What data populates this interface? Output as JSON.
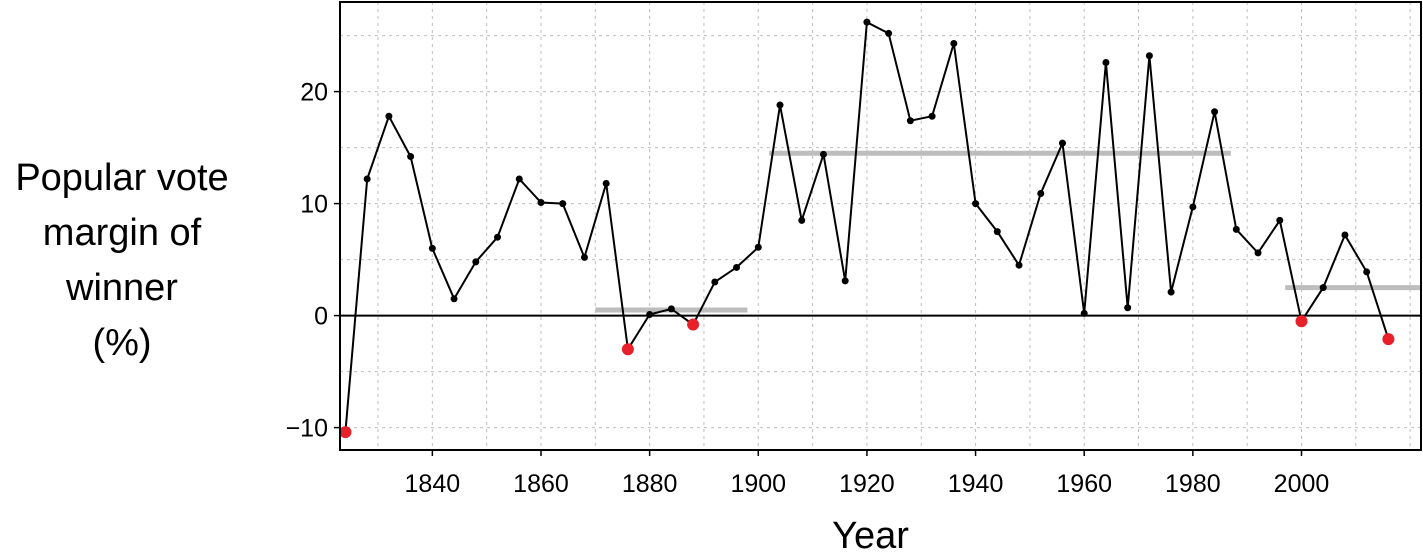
{
  "chart_data": {
    "type": "line",
    "title": "",
    "xlabel": "Year",
    "ylabel_lines": [
      "Popular vote",
      "margin of",
      "winner",
      "(%)"
    ],
    "xlim": [
      1823,
      2022
    ],
    "ylim": [
      -12,
      28
    ],
    "x_ticks": [
      1840,
      1860,
      1880,
      1900,
      1920,
      1940,
      1960,
      1980,
      2000
    ],
    "y_ticks": [
      -10,
      0,
      10,
      20
    ],
    "x_tick_labels": [
      "1840",
      "1860",
      "1880",
      "1900",
      "1920",
      "1940",
      "1960",
      "1980",
      "2000"
    ],
    "y_tick_labels": [
      "−10",
      "0",
      "10",
      "20"
    ],
    "grid": true,
    "reference_line_y": 0,
    "colors": {
      "line": "#000000",
      "point": "#000000",
      "highlight_point": "#e8202a",
      "average_bar": "#bdbdbd",
      "grid": "#bfbfbf"
    },
    "series": [
      {
        "x": [
          1824,
          1828,
          1832,
          1836,
          1840,
          1844,
          1848,
          1852,
          1856,
          1860,
          1864,
          1868,
          1872,
          1876,
          1880,
          1884,
          1888,
          1892,
          1896,
          1900,
          1904,
          1908,
          1912,
          1916,
          1920,
          1924,
          1928,
          1932,
          1936,
          1940,
          1944,
          1948,
          1952,
          1956,
          1960,
          1964,
          1968,
          1972,
          1976,
          1980,
          1984,
          1988,
          1992,
          1996,
          2000,
          2004,
          2008,
          2012,
          2016
        ],
        "y": [
          -10.4,
          12.2,
          17.8,
          14.2,
          6.0,
          1.5,
          4.8,
          7.0,
          12.2,
          10.1,
          10.0,
          5.2,
          11.8,
          -3.0,
          0.1,
          0.6,
          -0.8,
          3.0,
          4.3,
          6.1,
          18.8,
          8.5,
          14.4,
          3.1,
          26.2,
          25.2,
          17.4,
          17.8,
          24.3,
          10.0,
          7.5,
          4.5,
          10.9,
          15.4,
          0.2,
          22.6,
          0.7,
          23.2,
          2.1,
          9.7,
          18.2,
          7.7,
          5.6,
          8.5,
          -0.5,
          2.5,
          7.2,
          3.9,
          -2.1
        ],
        "highlighted_x": [
          1824,
          1876,
          1888,
          2000,
          2016
        ]
      }
    ],
    "period_averages": [
      {
        "x_start": 1870,
        "x_end": 1898,
        "y": 0.5
      },
      {
        "x_start": 1902,
        "x_end": 1987,
        "y": 14.5
      },
      {
        "x_start": 1997,
        "x_end": 2022,
        "y": 2.5
      }
    ]
  }
}
